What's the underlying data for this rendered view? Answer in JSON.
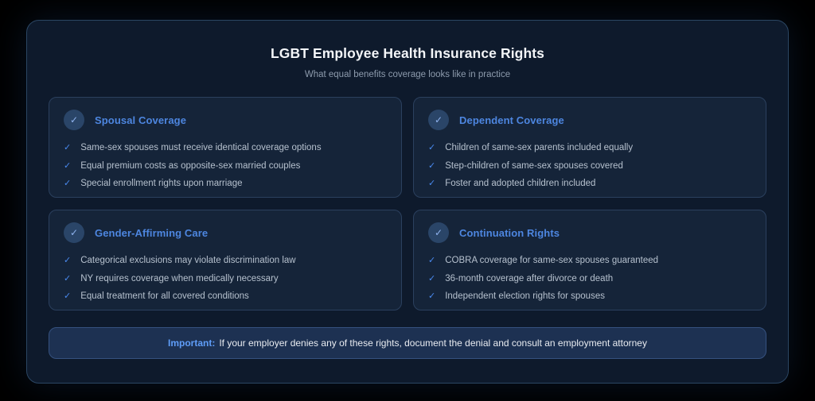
{
  "page": {
    "title": "LGBT Employee Health Insurance Rights",
    "subtitle": "What equal benefits coverage looks like in practice"
  },
  "icons": {
    "check": "✓"
  },
  "colors": {
    "panel_bg": "#0e1a2c",
    "card_bg": "#152439",
    "accent_blue": "#4d86e0",
    "check_blue": "#4a8af0",
    "banner_bg": "#1d3152",
    "body_text": "#b6c1ce"
  },
  "cards": [
    {
      "title": "Spousal Coverage",
      "items": [
        "Same-sex spouses must receive identical coverage options",
        "Equal premium costs as opposite-sex married couples",
        "Special enrollment rights upon marriage"
      ]
    },
    {
      "title": "Dependent Coverage",
      "items": [
        "Children of same-sex parents included equally",
        "Step-children of same-sex spouses covered",
        "Foster and adopted children included"
      ]
    },
    {
      "title": "Gender-Affirming Care",
      "items": [
        "Categorical exclusions may violate discrimination law",
        "NY requires coverage when medically necessary",
        "Equal treatment for all covered conditions"
      ]
    },
    {
      "title": "Continuation Rights",
      "items": [
        "COBRA coverage for same-sex spouses guaranteed",
        "36-month coverage after divorce or death",
        "Independent election rights for spouses"
      ]
    }
  ],
  "banner": {
    "label": "Important:",
    "text": "If your employer denies any of these rights, document the denial and consult an employment attorney"
  }
}
